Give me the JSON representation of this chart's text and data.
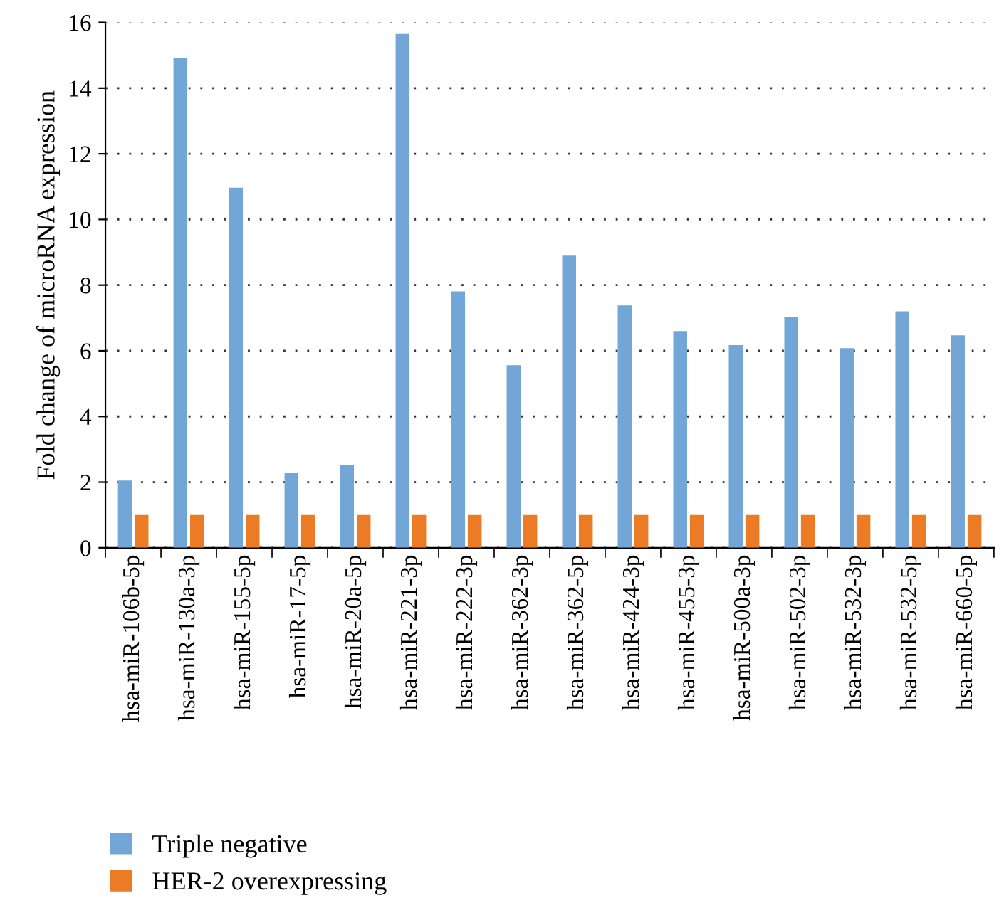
{
  "chart_data": {
    "type": "bar",
    "ylabel": "Fold change of microRNA expression",
    "categories": [
      "hsa-miR-106b-5p",
      "hsa-miR-130a-3p",
      "hsa-miR-155-5p",
      "hsa-miR-17-5p",
      "hsa-miR-20a-5p",
      "hsa-miR-221-3p",
      "hsa-miR-222-3p",
      "hsa-miR-362-3p",
      "hsa-miR-362-5p",
      "hsa-miR-424-3p",
      "hsa-miR-455-3p",
      "hsa-miR-500a-3p",
      "hsa-miR-502-3p",
      "hsa-miR-532-3p",
      "hsa-miR-532-5p",
      "hsa-miR-660-5p"
    ],
    "series": [
      {
        "name": "Triple negative",
        "color": "#72a6d6",
        "values": [
          2.05,
          14.92,
          10.97,
          2.27,
          2.53,
          15.65,
          7.81,
          5.56,
          8.9,
          7.38,
          6.6,
          6.17,
          7.03,
          6.08,
          7.2,
          6.47
        ]
      },
      {
        "name": "HER-2 overexpressing",
        "color": "#ec7b26",
        "values": [
          1,
          1,
          1,
          1,
          1,
          1,
          1,
          1,
          1,
          1,
          1,
          1,
          1,
          1,
          1,
          1
        ]
      }
    ],
    "ylim": [
      0,
      16
    ],
    "yticks": [
      0,
      2,
      4,
      6,
      8,
      10,
      12,
      14,
      16
    ],
    "grid": "y",
    "legend": "bottom left"
  }
}
